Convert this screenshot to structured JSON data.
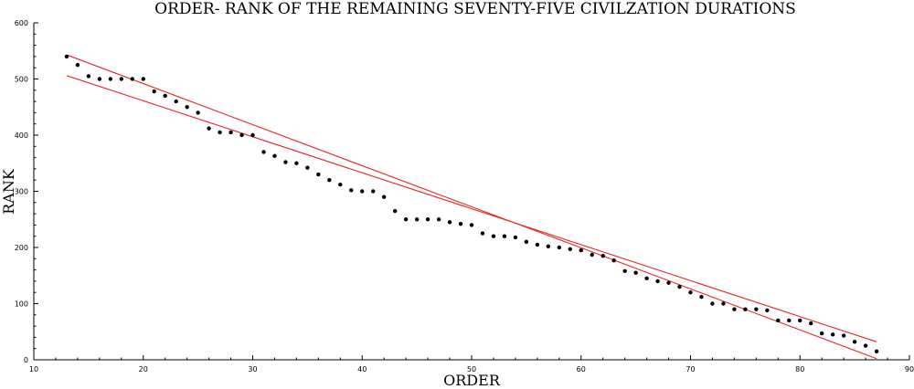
{
  "chart_data": {
    "type": "scatter",
    "title": "ORDER- RANK OF THE REMAINING SEVENTY-FIVE CIVILZATION DURATIONS",
    "xlabel": "ORDER",
    "ylabel": "RANK",
    "xlim": [
      10,
      90
    ],
    "ylim": [
      0,
      600
    ],
    "xticks": [
      "10",
      "20",
      "30",
      "40",
      "50",
      "60",
      "70",
      "80",
      "90"
    ],
    "yticks": [
      "0",
      "100",
      "200",
      "300",
      "400",
      "500",
      "600"
    ],
    "grid": false,
    "points": [
      [
        13,
        540
      ],
      [
        14,
        525
      ],
      [
        15,
        505
      ],
      [
        16,
        500
      ],
      [
        17,
        500
      ],
      [
        18,
        500
      ],
      [
        19,
        500
      ],
      [
        20,
        500
      ],
      [
        21,
        478
      ],
      [
        22,
        470
      ],
      [
        23,
        460
      ],
      [
        24,
        450
      ],
      [
        25,
        440
      ],
      [
        26,
        412
      ],
      [
        27,
        405
      ],
      [
        28,
        405
      ],
      [
        29,
        400
      ],
      [
        30,
        400
      ],
      [
        31,
        370
      ],
      [
        32,
        363
      ],
      [
        33,
        352
      ],
      [
        34,
        350
      ],
      [
        35,
        342
      ],
      [
        36,
        330
      ],
      [
        37,
        320
      ],
      [
        38,
        312
      ],
      [
        39,
        302
      ],
      [
        40,
        300
      ],
      [
        41,
        300
      ],
      [
        42,
        290
      ],
      [
        43,
        265
      ],
      [
        44,
        250
      ],
      [
        45,
        250
      ],
      [
        46,
        250
      ],
      [
        47,
        250
      ],
      [
        48,
        245
      ],
      [
        49,
        242
      ],
      [
        50,
        240
      ],
      [
        51,
        225
      ],
      [
        52,
        220
      ],
      [
        53,
        220
      ],
      [
        54,
        218
      ],
      [
        55,
        210
      ],
      [
        56,
        205
      ],
      [
        57,
        202
      ],
      [
        58,
        200
      ],
      [
        59,
        197
      ],
      [
        60,
        195
      ],
      [
        61,
        187
      ],
      [
        62,
        185
      ],
      [
        63,
        177
      ],
      [
        64,
        158
      ],
      [
        65,
        155
      ],
      [
        66,
        145
      ],
      [
        67,
        140
      ],
      [
        68,
        137
      ],
      [
        69,
        130
      ],
      [
        70,
        120
      ],
      [
        71,
        112
      ],
      [
        72,
        100
      ],
      [
        73,
        100
      ],
      [
        74,
        90
      ],
      [
        75,
        90
      ],
      [
        76,
        90
      ],
      [
        77,
        88
      ],
      [
        78,
        70
      ],
      [
        79,
        70
      ],
      [
        80,
        70
      ],
      [
        81,
        65
      ],
      [
        82,
        47
      ],
      [
        83,
        45
      ],
      [
        84,
        43
      ],
      [
        85,
        32
      ],
      [
        86,
        25
      ],
      [
        87,
        15
      ]
    ],
    "fit_lines": [
      {
        "x": [
          13,
          87
        ],
        "y": [
          506,
          32
        ]
      },
      {
        "x": [
          13,
          87
        ],
        "y": [
          543,
          2
        ]
      }
    ],
    "colors": {
      "points": "#000000",
      "fit_lines": "#e32626",
      "axes": "#000000"
    }
  }
}
